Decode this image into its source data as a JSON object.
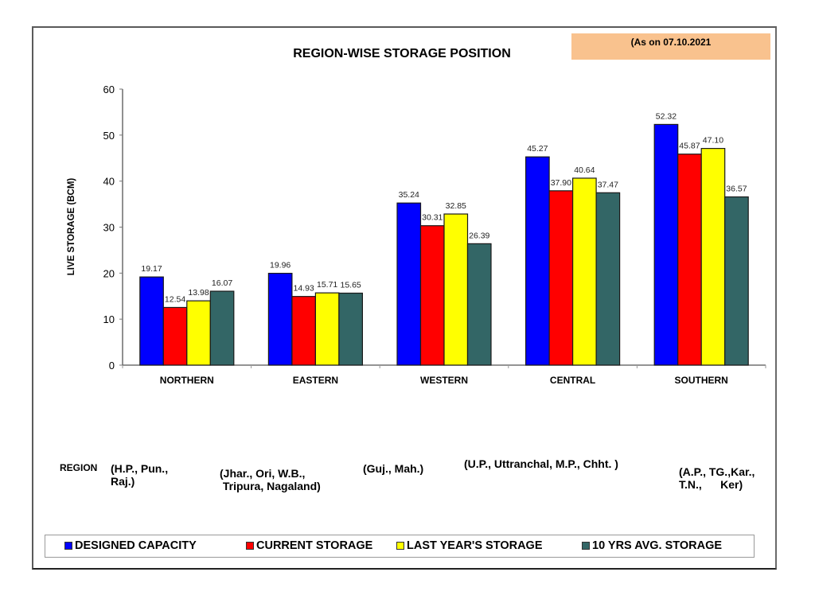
{
  "header": {
    "date_note": "(As on 07.10.2021",
    "date_box_color": "#f9c28e"
  },
  "chart_data": {
    "type": "bar",
    "title": "REGION-WISE STORAGE POSITION",
    "xlabel": "",
    "ylabel": "LIVE STORAGE (BCM)",
    "ylim": [
      0,
      60
    ],
    "yticks": [
      0,
      10,
      20,
      30,
      40,
      50,
      60
    ],
    "grid": false,
    "legend_position": "bottom",
    "categories": [
      "NORTHERN",
      "EASTERN",
      "WESTERN",
      "CENTRAL",
      "SOUTHERN"
    ],
    "series": [
      {
        "name": "DESIGNED CAPACITY",
        "color": "#0000ff",
        "values": [
          19.17,
          19.96,
          35.24,
          45.27,
          52.32
        ],
        "labels": [
          "19.17",
          "19.96",
          "35.24",
          "45.27",
          "52.32"
        ]
      },
      {
        "name": "CURRENT STORAGE",
        "color": "#ff0000",
        "values": [
          12.54,
          14.93,
          30.31,
          37.9,
          45.87
        ],
        "labels": [
          "12.54",
          "14.93",
          "30.31",
          "37.90",
          "45.87"
        ]
      },
      {
        "name": "LAST YEAR'S STORAGE",
        "color": "#ffff00",
        "values": [
          13.98,
          15.71,
          32.85,
          40.64,
          47.1
        ],
        "labels": [
          "13.98",
          "15.71",
          "32.85",
          "40.64",
          "47.10"
        ]
      },
      {
        "name": "10 YRS AVG. STORAGE",
        "color": "#336666",
        "values": [
          16.07,
          15.65,
          26.39,
          37.47,
          36.57
        ],
        "labels": [
          "16.07",
          "15.65",
          "26.39",
          "37.47",
          "36.57"
        ]
      }
    ]
  },
  "regions": {
    "label": "REGION",
    "descriptions": [
      "(H.P., Pun.,\nRaj.)",
      "(Jhar., Ori, W.B.,\n Tripura, Nagaland)",
      "(Guj., Mah.)",
      "(U.P., Uttranchal, M.P., Chht. )",
      "(A.P., TG.,Kar.,\nT.N.,      Ker)"
    ]
  }
}
